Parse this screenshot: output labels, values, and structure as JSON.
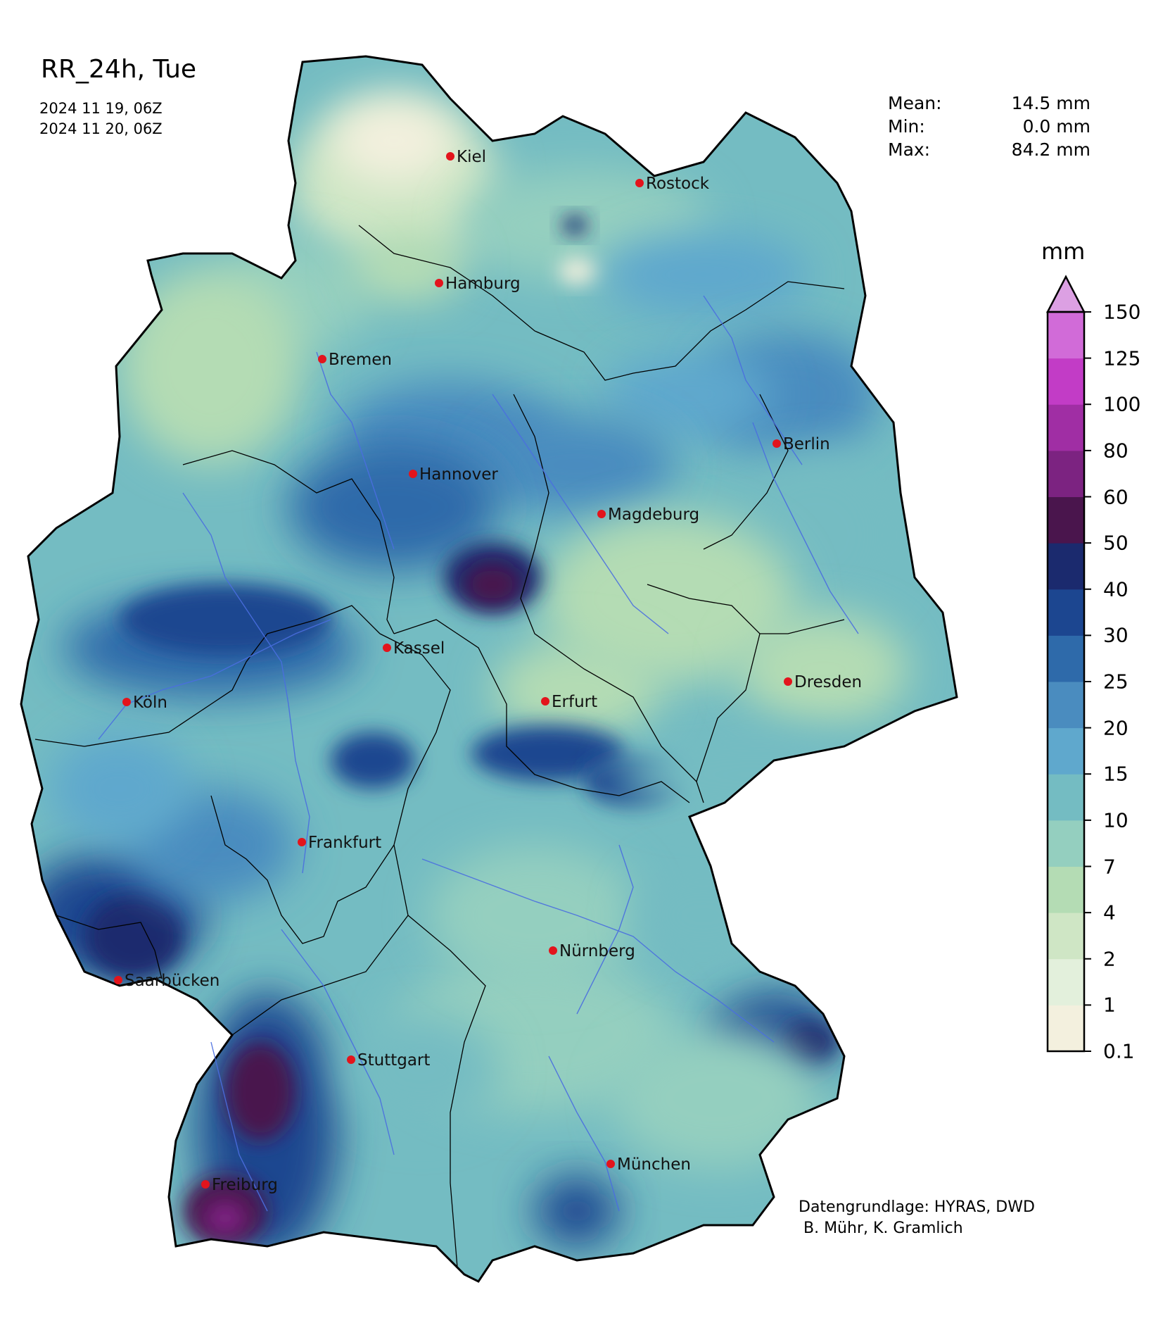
{
  "title": "RR_24h, Tue",
  "period": {
    "start": "2024 11 19, 06Z",
    "end": "2024 11 20, 06Z"
  },
  "stats": [
    {
      "label": "Mean:",
      "value": "14.5 mm"
    },
    {
      "label": "Min:",
      "value": "0.0 mm"
    },
    {
      "label": "Max:",
      "value": "84.2 mm"
    }
  ],
  "colorbar": {
    "unit": "mm",
    "ticks": [
      "0.1",
      "1",
      "2",
      "4",
      "7",
      "10",
      "15",
      "20",
      "25",
      "30",
      "40",
      "50",
      "60",
      "80",
      "100",
      "125",
      "150"
    ],
    "colors": [
      "#f3f0de",
      "#e3f0dc",
      "#cfe6c5",
      "#b4dcb4",
      "#94cfbf",
      "#74bcc2",
      "#5fa8cd",
      "#4a8cbf",
      "#2e6aaa",
      "#1c4690",
      "#1b2a6e",
      "#4a154d",
      "#7c2381",
      "#a02ea4",
      "#c23cc6",
      "#d16bd8",
      "#dca0e3"
    ]
  },
  "cities": [
    {
      "name": "Kiel"
    },
    {
      "name": "Rostock"
    },
    {
      "name": "Hamburg"
    },
    {
      "name": "Bremen"
    },
    {
      "name": "Berlin"
    },
    {
      "name": "Hannover"
    },
    {
      "name": "Magdeburg"
    },
    {
      "name": "Kassel"
    },
    {
      "name": "Köln"
    },
    {
      "name": "Dresden"
    },
    {
      "name": "Erfurt"
    },
    {
      "name": "Frankfurt"
    },
    {
      "name": "Nürnberg"
    },
    {
      "name": "Saarbücken"
    },
    {
      "name": "Stuttgart"
    },
    {
      "name": "München"
    },
    {
      "name": "Freiburg"
    }
  ],
  "credit": "Datengrundlage: HYRAS, DWD\n B. Mühr, K. Gramlich"
}
